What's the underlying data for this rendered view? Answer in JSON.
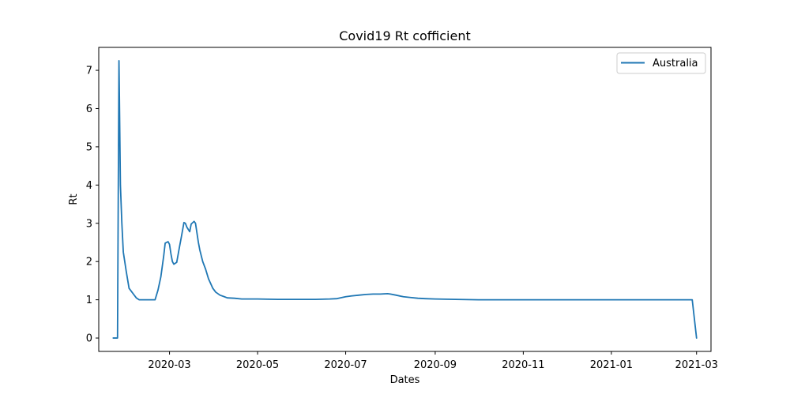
{
  "chart_data": {
    "type": "line",
    "title": "Covid19 Rt cofficient",
    "xlabel": "Dates",
    "ylabel": "Rt",
    "x_axis_type": "date",
    "xlim": [
      "2020-01-12",
      "2021-03-11"
    ],
    "ylim": [
      -0.35,
      7.6
    ],
    "x_ticks": [
      "2020-03-01",
      "2020-05-01",
      "2020-07-01",
      "2020-09-01",
      "2020-11-01",
      "2021-01-01",
      "2021-03-01"
    ],
    "x_tick_labels": [
      "2020-03",
      "2020-05",
      "2020-07",
      "2020-09",
      "2020-11",
      "2021-01",
      "2021-03"
    ],
    "y_ticks": [
      0,
      1,
      2,
      3,
      4,
      5,
      6,
      7
    ],
    "y_tick_labels": [
      "0",
      "1",
      "2",
      "3",
      "4",
      "5",
      "6",
      "7"
    ],
    "grid": false,
    "legend": {
      "position": "top-right",
      "entries": [
        "Australia"
      ]
    },
    "colors": {
      "series": "#1f77b4"
    },
    "series": [
      {
        "name": "Australia",
        "points": [
          [
            "2020-01-22",
            0.0
          ],
          [
            "2020-01-25",
            0.0
          ],
          [
            "2020-01-26",
            7.25
          ],
          [
            "2020-01-27",
            4.0
          ],
          [
            "2020-01-28",
            3.0
          ],
          [
            "2020-01-29",
            2.25
          ],
          [
            "2020-01-31",
            1.75
          ],
          [
            "2020-02-02",
            1.3
          ],
          [
            "2020-02-04",
            1.2
          ],
          [
            "2020-02-05",
            1.15
          ],
          [
            "2020-02-07",
            1.05
          ],
          [
            "2020-02-09",
            1.0
          ],
          [
            "2020-02-12",
            1.0
          ],
          [
            "2020-02-15",
            1.0
          ],
          [
            "2020-02-18",
            1.0
          ],
          [
            "2020-02-20",
            1.0
          ],
          [
            "2020-02-22",
            1.25
          ],
          [
            "2020-02-24",
            1.6
          ],
          [
            "2020-02-26",
            2.15
          ],
          [
            "2020-02-27",
            2.48
          ],
          [
            "2020-02-29",
            2.52
          ],
          [
            "2020-03-01",
            2.45
          ],
          [
            "2020-03-02",
            2.2
          ],
          [
            "2020-03-03",
            2.0
          ],
          [
            "2020-03-04",
            1.93
          ],
          [
            "2020-03-06",
            1.98
          ],
          [
            "2020-03-08",
            2.4
          ],
          [
            "2020-03-09",
            2.6
          ],
          [
            "2020-03-11",
            3.02
          ],
          [
            "2020-03-12",
            3.0
          ],
          [
            "2020-03-13",
            2.9
          ],
          [
            "2020-03-15",
            2.78
          ],
          [
            "2020-03-16",
            2.98
          ],
          [
            "2020-03-18",
            3.05
          ],
          [
            "2020-03-19",
            3.0
          ],
          [
            "2020-03-21",
            2.5
          ],
          [
            "2020-03-22",
            2.3
          ],
          [
            "2020-03-24",
            2.0
          ],
          [
            "2020-03-26",
            1.8
          ],
          [
            "2020-03-28",
            1.55
          ],
          [
            "2020-03-31",
            1.3
          ],
          [
            "2020-04-02",
            1.2
          ],
          [
            "2020-04-05",
            1.12
          ],
          [
            "2020-04-08",
            1.08
          ],
          [
            "2020-04-10",
            1.05
          ],
          [
            "2020-04-15",
            1.04
          ],
          [
            "2020-04-20",
            1.02
          ],
          [
            "2020-04-25",
            1.02
          ],
          [
            "2020-05-01",
            1.02
          ],
          [
            "2020-05-15",
            1.01
          ],
          [
            "2020-06-01",
            1.01
          ],
          [
            "2020-06-10",
            1.01
          ],
          [
            "2020-06-20",
            1.02
          ],
          [
            "2020-06-25",
            1.03
          ],
          [
            "2020-07-01",
            1.08
          ],
          [
            "2020-07-05",
            1.1
          ],
          [
            "2020-07-10",
            1.12
          ],
          [
            "2020-07-15",
            1.14
          ],
          [
            "2020-07-20",
            1.15
          ],
          [
            "2020-07-25",
            1.15
          ],
          [
            "2020-07-30",
            1.16
          ],
          [
            "2020-08-01",
            1.15
          ],
          [
            "2020-08-05",
            1.12
          ],
          [
            "2020-08-10",
            1.08
          ],
          [
            "2020-08-15",
            1.06
          ],
          [
            "2020-08-20",
            1.04
          ],
          [
            "2020-08-25",
            1.03
          ],
          [
            "2020-09-01",
            1.02
          ],
          [
            "2020-09-15",
            1.01
          ],
          [
            "2020-10-01",
            1.0
          ],
          [
            "2020-11-01",
            1.0
          ],
          [
            "2020-12-01",
            1.0
          ],
          [
            "2021-01-01",
            1.0
          ],
          [
            "2021-02-01",
            1.0
          ],
          [
            "2021-02-25",
            1.0
          ],
          [
            "2021-02-26",
            1.0
          ],
          [
            "2021-03-01",
            0.0
          ]
        ]
      }
    ]
  }
}
